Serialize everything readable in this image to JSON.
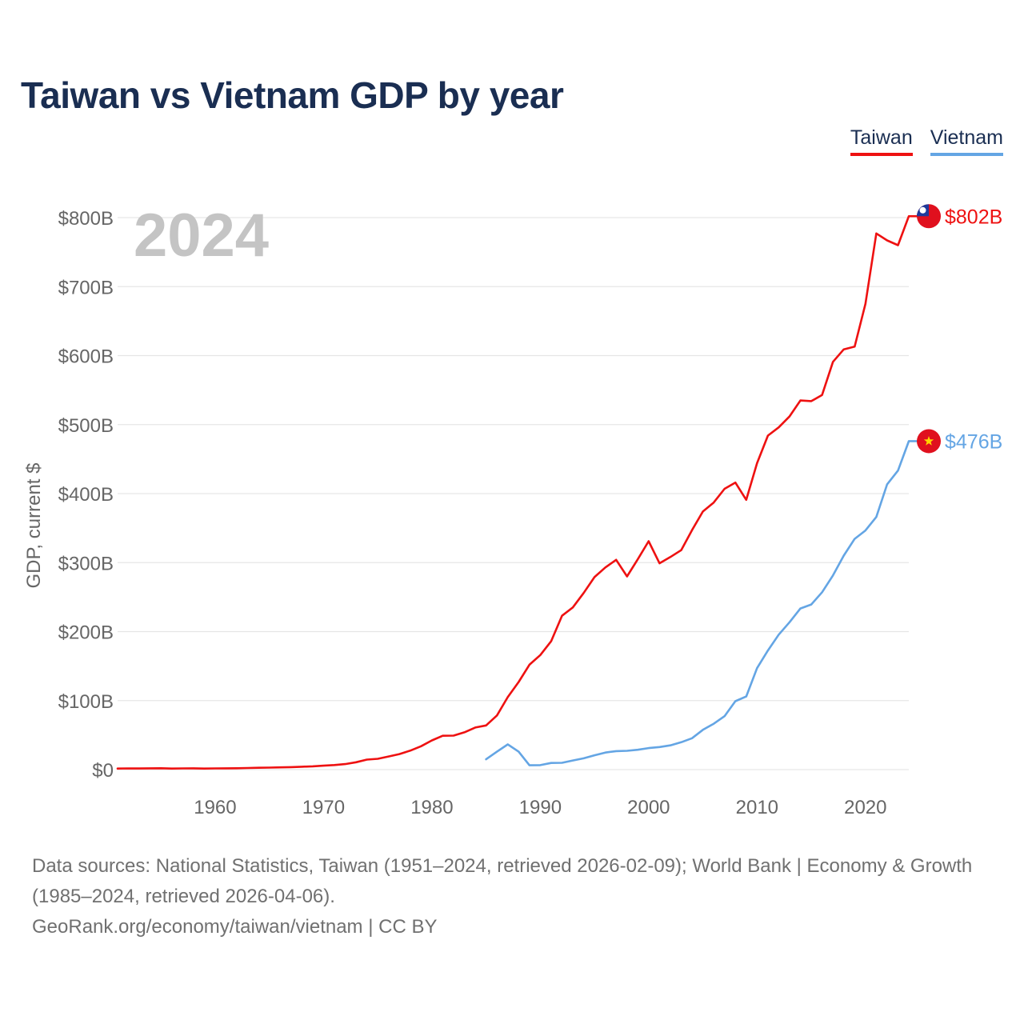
{
  "title": "Taiwan vs Vietnam GDP by year",
  "legend": [
    "Taiwan",
    "Vietnam"
  ],
  "year_watermark": "2024",
  "footer": {
    "sources": "Data sources: National Statistics, Taiwan (1951–2024, retrieved 2026-02-09); World Bank | Economy & Growth (1985–2024, retrieved 2026-04-06).",
    "link": "GeoRank.org/economy/taiwan/vietnam | CC BY"
  },
  "colors": {
    "taiwan": "#ee1111",
    "vietnam": "#64a5e4",
    "title": "#1a2e52",
    "axis_text": "#666666",
    "grid": "#e6e6e6"
  },
  "chart_data": {
    "type": "line",
    "title": "Taiwan vs Vietnam GDP by year",
    "ylabel": "GDP, current $",
    "xlabel": "",
    "ylim": [
      0,
      850
    ],
    "xlim": [
      1951,
      2024
    ],
    "yticks": [
      0,
      100,
      200,
      300,
      400,
      500,
      600,
      700,
      800
    ],
    "ytick_labels": [
      "$0",
      "$100B",
      "$200B",
      "$300B",
      "$400B",
      "$500B",
      "$600B",
      "$700B",
      "$800B"
    ],
    "xticks": [
      1960,
      1970,
      1980,
      1990,
      2000,
      2010,
      2020
    ],
    "xtick_labels": [
      "1960",
      "1970",
      "1980",
      "1990",
      "2000",
      "2010",
      "2020"
    ],
    "grid": true,
    "legend_position": "top-right",
    "series": [
      {
        "name": "Taiwan",
        "color": "#ee1111",
        "end_label": "$802B",
        "flag": "taiwan-flag",
        "x": [
          1951,
          1952,
          1953,
          1954,
          1955,
          1956,
          1957,
          1958,
          1959,
          1960,
          1961,
          1962,
          1963,
          1964,
          1965,
          1966,
          1967,
          1968,
          1969,
          1970,
          1971,
          1972,
          1973,
          1974,
          1975,
          1976,
          1977,
          1978,
          1979,
          1980,
          1981,
          1982,
          1983,
          1984,
          1985,
          1986,
          1987,
          1988,
          1989,
          1990,
          1991,
          1992,
          1993,
          1994,
          1995,
          1996,
          1997,
          1998,
          1999,
          2000,
          2001,
          2002,
          2003,
          2004,
          2005,
          2006,
          2007,
          2008,
          2009,
          2010,
          2011,
          2012,
          2013,
          2014,
          2015,
          2016,
          2017,
          2018,
          2019,
          2020,
          2021,
          2022,
          2023,
          2024
        ],
        "y": [
          1.5,
          1.7,
          1.6,
          1.8,
          2.0,
          1.5,
          1.7,
          1.8,
          1.5,
          1.7,
          1.8,
          2.0,
          2.3,
          2.7,
          2.9,
          3.2,
          3.6,
          4.2,
          4.8,
          5.7,
          6.6,
          8.0,
          10.7,
          14.5,
          15.7,
          19.0,
          22.5,
          27.5,
          33.8,
          42.3,
          49.0,
          49.3,
          54.0,
          61.0,
          64.0,
          78.5,
          105.0,
          127.0,
          152.0,
          166.0,
          186.0,
          223.0,
          235.0,
          256.0,
          279.0,
          293.0,
          304.0,
          280.0,
          305.0,
          331.0,
          299.0,
          308.0,
          318.0,
          347.0,
          374.0,
          387.0,
          407.0,
          416.0,
          391.0,
          444.0,
          484.0,
          496.0,
          512.0,
          535.0,
          534.0,
          543.0,
          591.0,
          609.0,
          613.0,
          675.0,
          777.0,
          767.0,
          760.0,
          802.0
        ]
      },
      {
        "name": "Vietnam",
        "color": "#64a5e4",
        "end_label": "$476B",
        "flag": "vietnam-flag",
        "x": [
          1985,
          1986,
          1987,
          1988,
          1989,
          1990,
          1991,
          1992,
          1993,
          1994,
          1995,
          1996,
          1997,
          1998,
          1999,
          2000,
          2001,
          2002,
          2003,
          2004,
          2005,
          2006,
          2007,
          2008,
          2009,
          2010,
          2011,
          2012,
          2013,
          2014,
          2015,
          2016,
          2017,
          2018,
          2019,
          2020,
          2021,
          2022,
          2023,
          2024
        ],
        "y": [
          15.0,
          26.0,
          36.5,
          26.0,
          6.3,
          6.5,
          9.6,
          9.9,
          13.2,
          16.3,
          20.7,
          24.7,
          26.8,
          27.2,
          28.7,
          31.2,
          32.7,
          35.1,
          39.6,
          45.4,
          57.6,
          66.4,
          77.4,
          99.1,
          106.0,
          147.0,
          172.6,
          195.6,
          213.7,
          233.5,
          239.3,
          257.1,
          281.4,
          310.1,
          334.4,
          346.6,
          366.1,
          413.4,
          433.4,
          476.0
        ]
      }
    ]
  }
}
